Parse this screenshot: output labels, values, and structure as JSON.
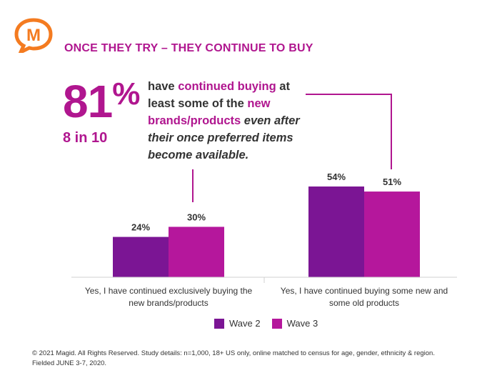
{
  "header": {
    "logo_letter": "M",
    "title": "ONCE THEY TRY – THEY CONTINUE TO BUY"
  },
  "stat": {
    "value": "81",
    "percent_sign": "%",
    "ratio": "8 in 10"
  },
  "callout": {
    "part1": "have ",
    "part2": "continued buying",
    "part3": " at least some of the ",
    "part4": "new brands/products",
    "part5": " even after their once preferred items become available."
  },
  "colors": {
    "wave2": "#7b1594",
    "wave3": "#b5179c",
    "accent": "#b0168f",
    "logo": "#f47b20"
  },
  "chart_data": {
    "type": "bar",
    "categories": [
      "Yes, I have continued exclusively buying the new brands/products",
      "Yes, I have continued buying some new and some old products"
    ],
    "category_lines": [
      [
        "Yes, I have continued exclusively buying the",
        "new brands/products"
      ],
      [
        "Yes, I have continued buying some new and",
        "some old products"
      ]
    ],
    "series": [
      {
        "name": "Wave 2",
        "values": [
          24,
          54
        ],
        "labels": [
          "24%",
          "54%"
        ]
      },
      {
        "name": "Wave 3",
        "values": [
          30,
          51
        ],
        "labels": [
          "30%",
          "51%"
        ]
      }
    ],
    "ylim": [
      0,
      54
    ],
    "legend": "bottom-center",
    "grid": false
  },
  "footer": {
    "line1": "© 2021 Magid. All Rights Reserved. Study details: n=1,000, 18+ US only, online matched to census for age, gender, ethnicity & region.",
    "line2": "Fielded JUNE 3-7, 2020."
  }
}
